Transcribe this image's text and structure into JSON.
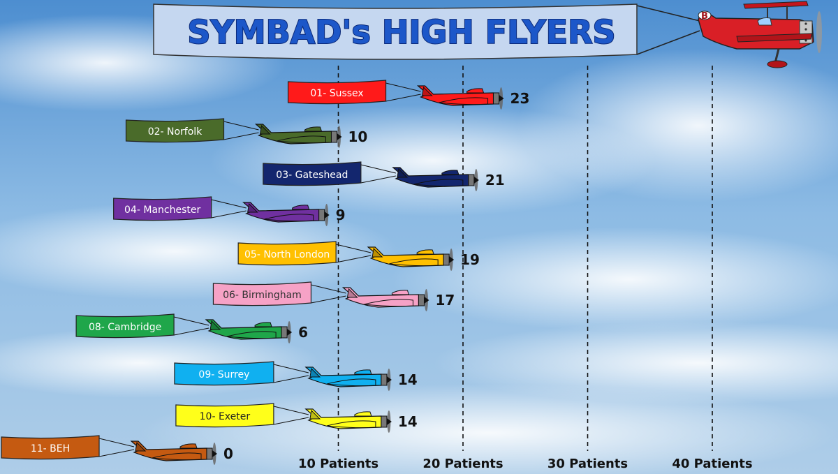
{
  "chart_data": {
    "type": "bar",
    "title": "SYMBAD's HIGH FLYERS",
    "x_ticks": [
      {
        "value": 10,
        "label": "10 Patients"
      },
      {
        "value": 20,
        "label": "20 Patients"
      },
      {
        "value": 30,
        "label": "30 Patients"
      },
      {
        "value": 40,
        "label": "40 Patients"
      }
    ],
    "categories": [
      "01- Sussex",
      "02- Norfolk",
      "03- Gateshead",
      "04- Manchester",
      "05- North London",
      "06- Birmingham",
      "08- Cambridge",
      "09- Surrey",
      "10- Exeter",
      "11- BEH"
    ],
    "values": [
      23,
      10,
      21,
      9,
      19,
      17,
      6,
      14,
      14,
      0
    ],
    "colors": [
      "#ff1a1a",
      "#4a6b2a",
      "#13266e",
      "#7030a0",
      "#ffc000",
      "#f6a2c6",
      "#1fa64a",
      "#10b0f0",
      "#ffff1a",
      "#c55a11"
    ],
    "text_colors": [
      "#ffffff",
      "#ffffff",
      "#ffffff",
      "#ffffff",
      "#ffffff",
      "#333333",
      "#ffffff",
      "#ffffff",
      "#222222",
      "#ffffff"
    ],
    "grid": "vertical dashed",
    "banner_plane_color": "#e0202a",
    "banner_plane_letter": "B"
  }
}
